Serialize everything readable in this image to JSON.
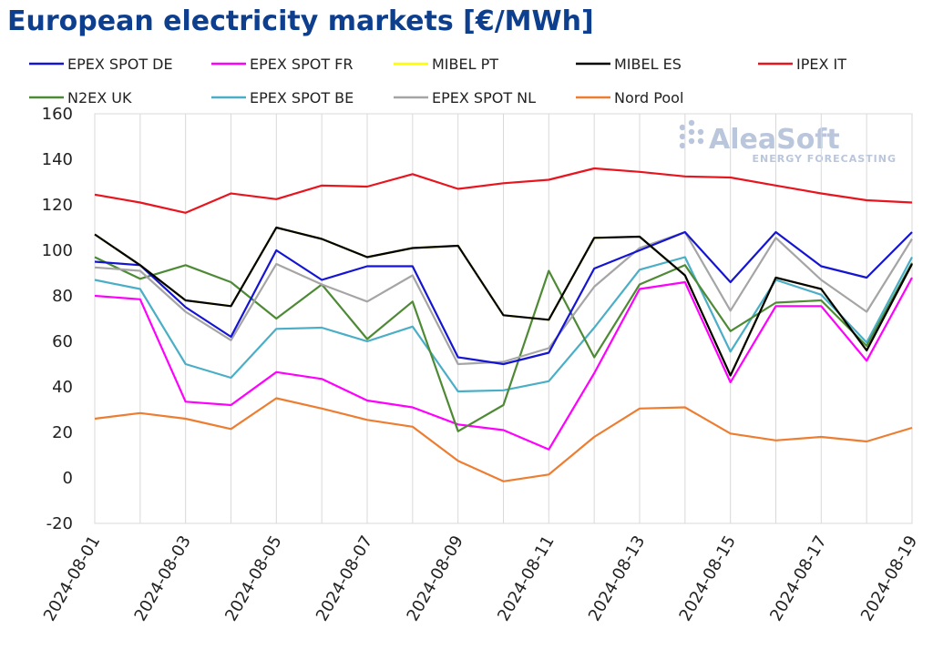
{
  "chart_data": {
    "type": "line",
    "title": "European electricity markets [€/MWh]",
    "xlabel": "",
    "ylabel": "",
    "ylim": [
      -20,
      160
    ],
    "yticks": [
      -20,
      0,
      20,
      40,
      60,
      80,
      100,
      120,
      140,
      160
    ],
    "grid": "vertical",
    "legend": "top",
    "x": [
      "2024-08-01",
      "2024-08-02",
      "2024-08-03",
      "2024-08-04",
      "2024-08-05",
      "2024-08-06",
      "2024-08-07",
      "2024-08-08",
      "2024-08-09",
      "2024-08-10",
      "2024-08-11",
      "2024-08-12",
      "2024-08-13",
      "2024-08-14",
      "2024-08-15",
      "2024-08-16",
      "2024-08-17",
      "2024-08-18",
      "2024-08-19"
    ],
    "xtick_labels": [
      "2024-08-01",
      "2024-08-03",
      "2024-08-05",
      "2024-08-07",
      "2024-08-09",
      "2024-08-11",
      "2024-08-13",
      "2024-08-15",
      "2024-08-17",
      "2024-08-19"
    ],
    "series": [
      {
        "name": "EPEX SPOT DE",
        "color": "#1414d2",
        "values": [
          95,
          93.5,
          75,
          62,
          100,
          87,
          93,
          93,
          53,
          50,
          55,
          92,
          100,
          108,
          86,
          108,
          93,
          88,
          108
        ]
      },
      {
        "name": "EPEX SPOT FR",
        "color": "#ff00ff",
        "values": [
          80,
          78.5,
          33.5,
          32,
          46.5,
          43.5,
          34,
          31,
          23.5,
          21,
          12.5,
          46,
          83,
          86,
          42,
          75.5,
          75.5,
          51.5,
          88
        ]
      },
      {
        "name": "MIBEL PT",
        "color": "#ffff00",
        "values": [
          107,
          93.5,
          78,
          75.5,
          110,
          105,
          97,
          101,
          102,
          71.5,
          69.5,
          105.5,
          106,
          89,
          45,
          88,
          83,
          56,
          94
        ]
      },
      {
        "name": "MIBEL ES",
        "color": "#000000",
        "values": [
          107,
          93.5,
          78,
          75.5,
          110,
          105,
          97,
          101,
          102,
          71.5,
          69.5,
          105.5,
          106,
          89,
          45,
          88,
          83,
          56,
          94
        ]
      },
      {
        "name": "IPEX IT",
        "color": "#e8141e",
        "values": [
          124.5,
          121,
          116.5,
          125,
          122.5,
          128.5,
          128,
          133.5,
          127,
          129.5,
          131,
          136,
          134.5,
          132.5,
          132,
          128.5,
          125,
          122,
          121
        ]
      },
      {
        "name": "N2EX UK",
        "color": "#4e8a35",
        "values": [
          97,
          87.5,
          93.5,
          86,
          70,
          85,
          61,
          77.5,
          20.5,
          32,
          91,
          53,
          85,
          93.5,
          64.5,
          77,
          78,
          58,
          94.5
        ]
      },
      {
        "name": "EPEX SPOT BE",
        "color": "#4aaec6",
        "values": [
          87,
          83,
          50,
          44,
          65.5,
          66,
          60,
          66.5,
          38,
          38.5,
          42.5,
          66,
          91.5,
          97,
          55.5,
          87,
          80.5,
          59.5,
          97
        ]
      },
      {
        "name": "EPEX SPOT NL",
        "color": "#a5a5a5",
        "values": [
          92.5,
          91,
          73,
          60.5,
          94,
          85,
          77.5,
          89,
          50,
          51,
          57,
          84,
          101,
          108,
          73.5,
          105.5,
          87,
          73,
          105
        ]
      },
      {
        "name": "Nord Pool",
        "color": "#ed7d31",
        "values": [
          26,
          28.5,
          26,
          21.5,
          35,
          30.5,
          25.5,
          22.5,
          7.5,
          -1.5,
          1.5,
          18,
          30.5,
          31,
          19.5,
          16.5,
          18,
          16,
          22
        ]
      }
    ],
    "watermark": {
      "name": "AleaSoft",
      "tagline": "ENERGY FORECASTING"
    }
  }
}
